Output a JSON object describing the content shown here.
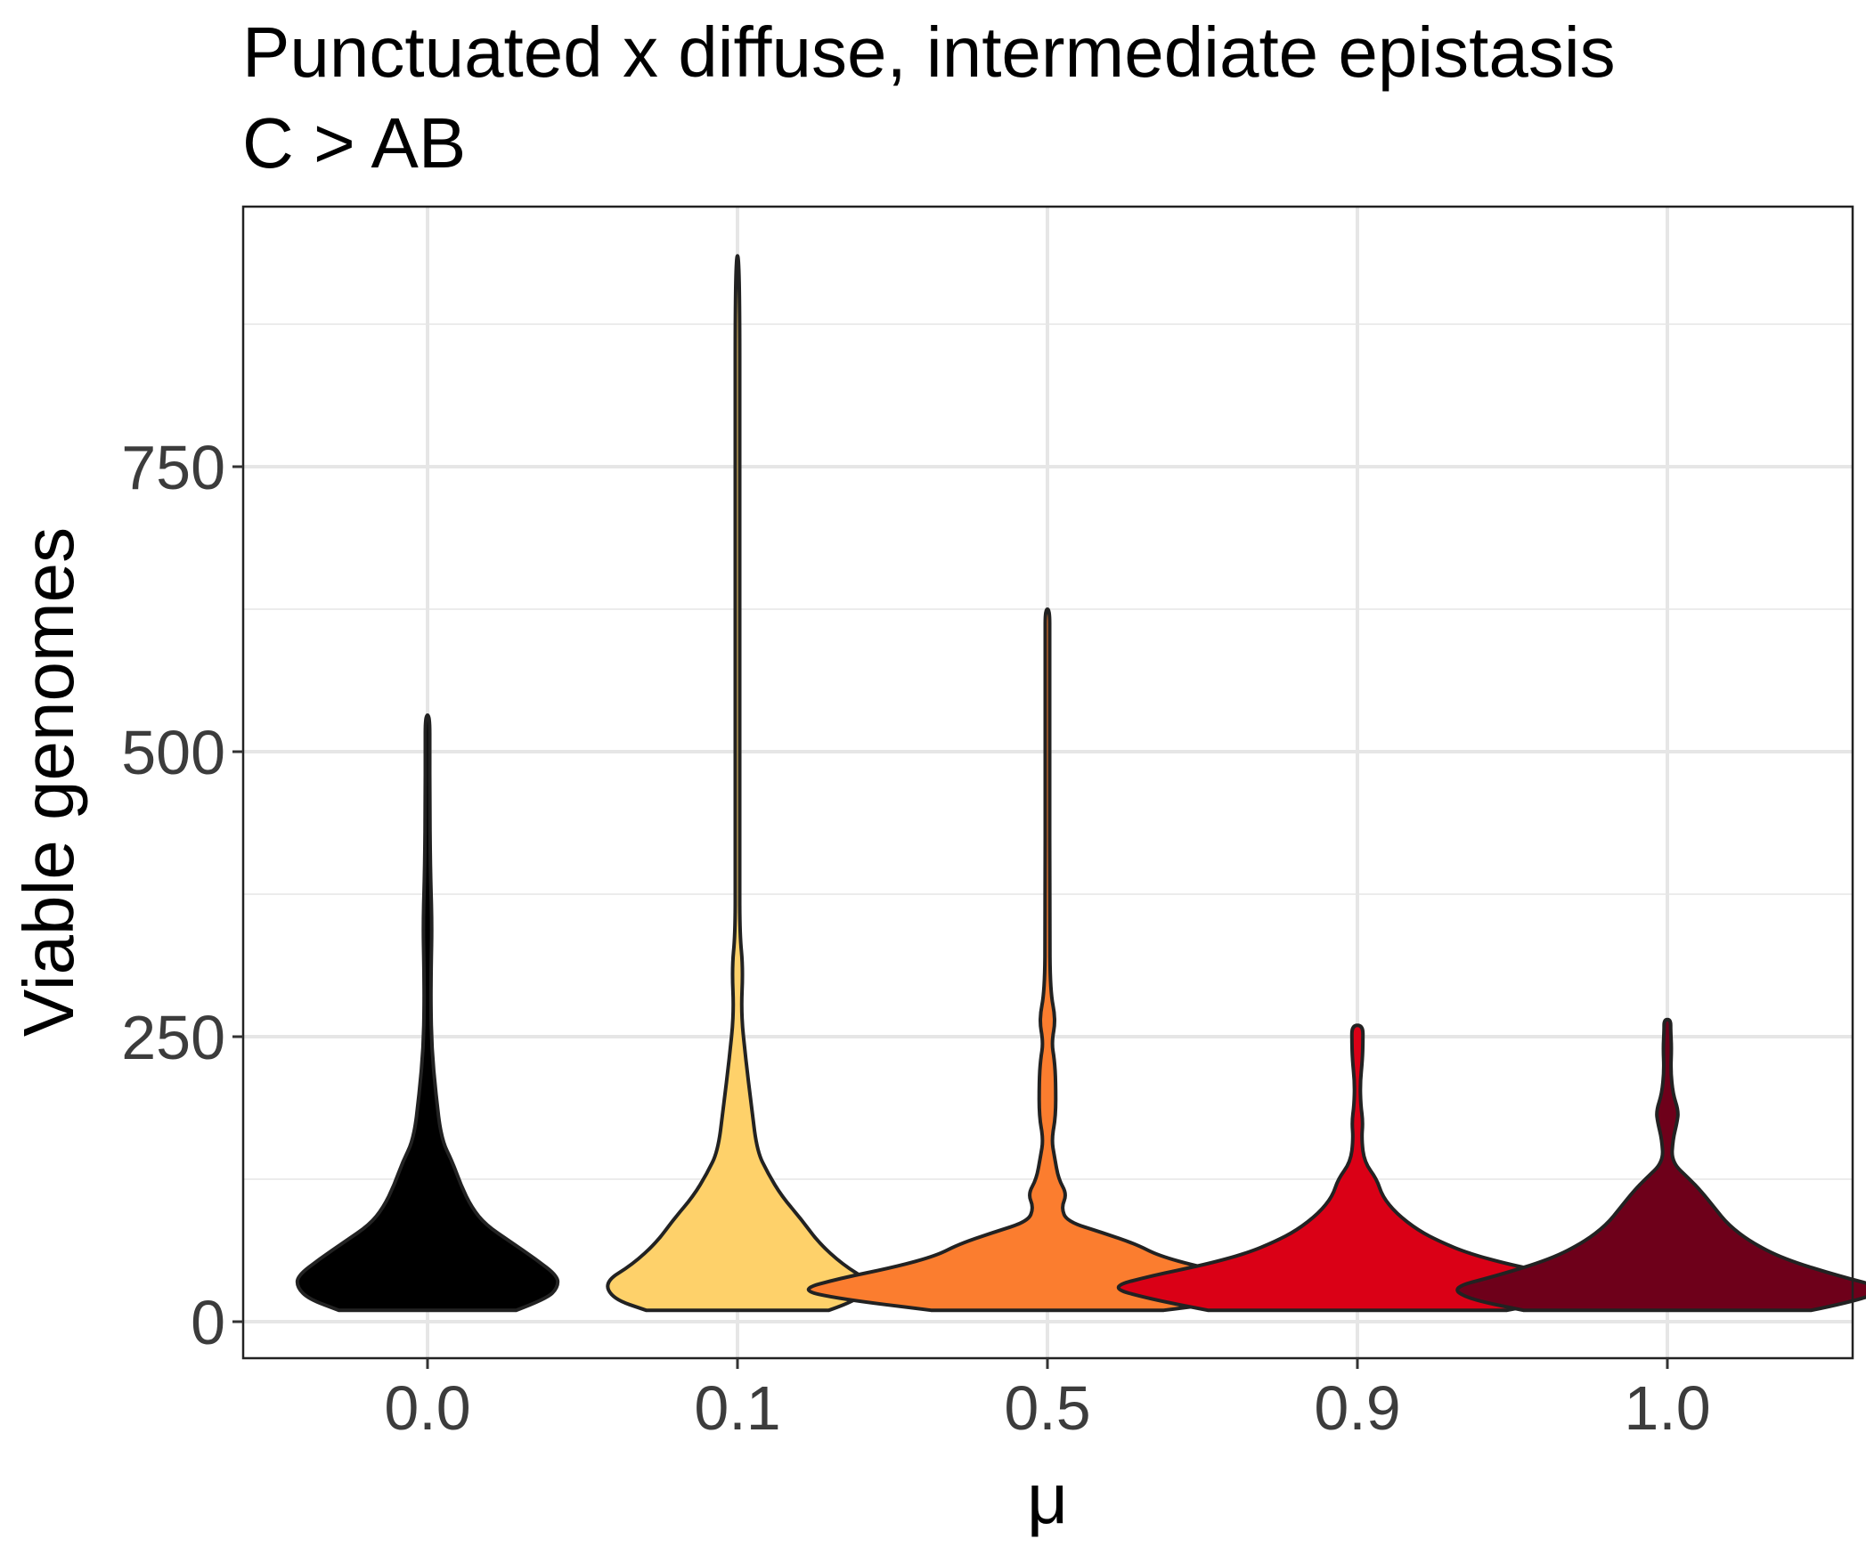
{
  "chart_data": {
    "type": "violin",
    "title": "Punctuated x diffuse, intermediate epistasis",
    "subtitle": "C > AB",
    "xlabel": "μ",
    "ylabel": "Viable genomes",
    "categories": [
      "0.0",
      "0.1",
      "0.5",
      "0.9",
      "1.0"
    ],
    "y_ticks": [
      0,
      250,
      500,
      750
    ],
    "y_tick_labels": [
      "0",
      "250",
      "500",
      "750"
    ],
    "ylim": [
      -35,
      980
    ],
    "grid": true,
    "legend": "none",
    "series": [
      {
        "category": "0.0",
        "color": "#000000",
        "min": 10,
        "max": 532,
        "profile": [
          [
            10,
            0.32
          ],
          [
            20,
            0.43
          ],
          [
            30,
            0.47
          ],
          [
            40,
            0.47
          ],
          [
            55,
            0.39
          ],
          [
            70,
            0.3
          ],
          [
            85,
            0.21
          ],
          [
            100,
            0.16
          ],
          [
            120,
            0.12
          ],
          [
            140,
            0.09
          ],
          [
            160,
            0.05
          ],
          [
            200,
            0.03
          ],
          [
            240,
            0.015
          ],
          [
            280,
            0.012
          ],
          [
            310,
            0.013
          ],
          [
            350,
            0.016
          ],
          [
            400,
            0.01
          ],
          [
            460,
            0.006
          ],
          [
            500,
            0.006
          ],
          [
            532,
            0.006
          ]
        ]
      },
      {
        "category": "0.1",
        "color": "#FED16A",
        "min": 10,
        "max": 935,
        "profile": [
          [
            10,
            0.33
          ],
          [
            20,
            0.45
          ],
          [
            35,
            0.48
          ],
          [
            50,
            0.38
          ],
          [
            70,
            0.29
          ],
          [
            90,
            0.23
          ],
          [
            110,
            0.16
          ],
          [
            130,
            0.11
          ],
          [
            150,
            0.07
          ],
          [
            190,
            0.05
          ],
          [
            230,
            0.03
          ],
          [
            270,
            0.013
          ],
          [
            310,
            0.02
          ],
          [
            340,
            0.008
          ],
          [
            400,
            0.006
          ],
          [
            450,
            0.005
          ],
          [
            490,
            0.008
          ],
          [
            520,
            0.004
          ],
          [
            600,
            0.003
          ],
          [
            750,
            0.003
          ],
          [
            935,
            0.003
          ]
        ]
      },
      {
        "category": "0.5",
        "color": "#FB7D2F",
        "min": 10,
        "max": 625,
        "profile": [
          [
            10,
            0.42
          ],
          [
            20,
            0.75
          ],
          [
            28,
            0.9
          ],
          [
            38,
            0.75
          ],
          [
            48,
            0.55
          ],
          [
            58,
            0.4
          ],
          [
            68,
            0.32
          ],
          [
            78,
            0.2
          ],
          [
            88,
            0.07
          ],
          [
            100,
            0.05
          ],
          [
            112,
            0.07
          ],
          [
            125,
            0.04
          ],
          [
            145,
            0.025
          ],
          [
            160,
            0.015
          ],
          [
            180,
            0.03
          ],
          [
            210,
            0.03
          ],
          [
            230,
            0.025
          ],
          [
            245,
            0.015
          ],
          [
            265,
            0.03
          ],
          [
            290,
            0.01
          ],
          [
            350,
            0.003
          ],
          [
            500,
            0.003
          ],
          [
            600,
            0.004
          ],
          [
            625,
            0.008
          ]
        ]
      },
      {
        "category": "0.9",
        "color": "#DA0016",
        "min": 10,
        "max": 260,
        "profile": [
          [
            10,
            0.54
          ],
          [
            20,
            0.75
          ],
          [
            30,
            0.9
          ],
          [
            40,
            0.75
          ],
          [
            50,
            0.55
          ],
          [
            60,
            0.4
          ],
          [
            70,
            0.3
          ],
          [
            80,
            0.22
          ],
          [
            95,
            0.14
          ],
          [
            110,
            0.09
          ],
          [
            125,
            0.07
          ],
          [
            140,
            0.025
          ],
          [
            160,
            0.015
          ],
          [
            175,
            0.02
          ],
          [
            190,
            0.012
          ],
          [
            210,
            0.01
          ],
          [
            230,
            0.018
          ],
          [
            245,
            0.02
          ],
          [
            260,
            0.02
          ]
        ]
      },
      {
        "category": "1.0",
        "color": "#6E001A",
        "min": 10,
        "max": 265,
        "profile": [
          [
            10,
            0.52
          ],
          [
            20,
            0.72
          ],
          [
            30,
            0.78
          ],
          [
            40,
            0.62
          ],
          [
            55,
            0.42
          ],
          [
            70,
            0.3
          ],
          [
            85,
            0.22
          ],
          [
            100,
            0.17
          ],
          [
            115,
            0.12
          ],
          [
            125,
            0.08
          ],
          [
            140,
            0.015
          ],
          [
            160,
            0.02
          ],
          [
            175,
            0.035
          ],
          [
            185,
            0.04
          ],
          [
            200,
            0.02
          ],
          [
            220,
            0.012
          ],
          [
            240,
            0.015
          ],
          [
            255,
            0.012
          ],
          [
            265,
            0.012
          ]
        ]
      }
    ]
  }
}
